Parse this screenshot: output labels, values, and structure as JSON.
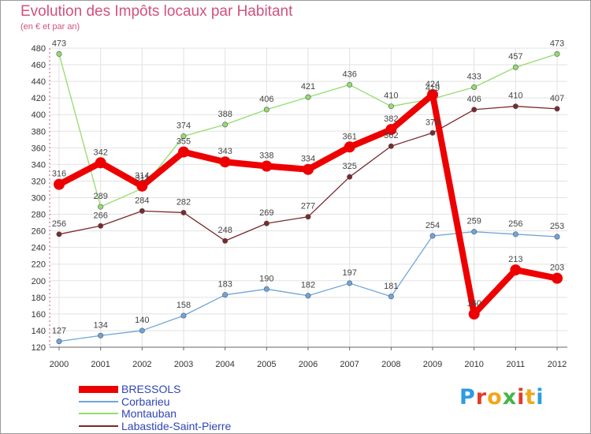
{
  "title": "Evolution des Impôts locaux par Habitant",
  "subtitle": "(en € et par an)",
  "logo_text": "Proxiti",
  "logo_colors": [
    "#2e9be0",
    "#e23b2a",
    "#f2a71b",
    "#43b54a",
    "#e23b2a",
    "#f2a71b",
    "#2e9be0"
  ],
  "chart_data": {
    "type": "line",
    "categories": [
      "2000",
      "2001",
      "2002",
      "2003",
      "2004",
      "2005",
      "2006",
      "2007",
      "2008",
      "2009",
      "2010",
      "2011",
      "2012"
    ],
    "ylim": [
      120,
      480
    ],
    "yticks": [
      120,
      140,
      160,
      180,
      200,
      220,
      240,
      260,
      280,
      300,
      320,
      340,
      360,
      380,
      400,
      420,
      440,
      460,
      480
    ],
    "grid": true,
    "legend_position": "bottom-left",
    "series": [
      {
        "name": "BRESSOLS",
        "color": "#ee0000",
        "emphasis": true,
        "values": [
          316,
          342,
          314,
          355,
          343,
          338,
          334,
          361,
          382,
          424,
          160,
          213,
          203
        ]
      },
      {
        "name": "Corbarieu",
        "color": "#6fa5d8",
        "values": [
          127,
          134,
          140,
          158,
          183,
          190,
          182,
          197,
          181,
          254,
          259,
          256,
          253
        ]
      },
      {
        "name": "Montauban",
        "color": "#94dc6c",
        "values": [
          473,
          289,
          311,
          374,
          388,
          406,
          421,
          436,
          410,
          419,
          433,
          457,
          473
        ]
      },
      {
        "name": "Labastide-Saint-Pierre",
        "color": "#7a2a2a",
        "values": [
          256,
          266,
          284,
          282,
          248,
          269,
          277,
          325,
          362,
          378,
          406,
          410,
          407
        ]
      }
    ]
  }
}
